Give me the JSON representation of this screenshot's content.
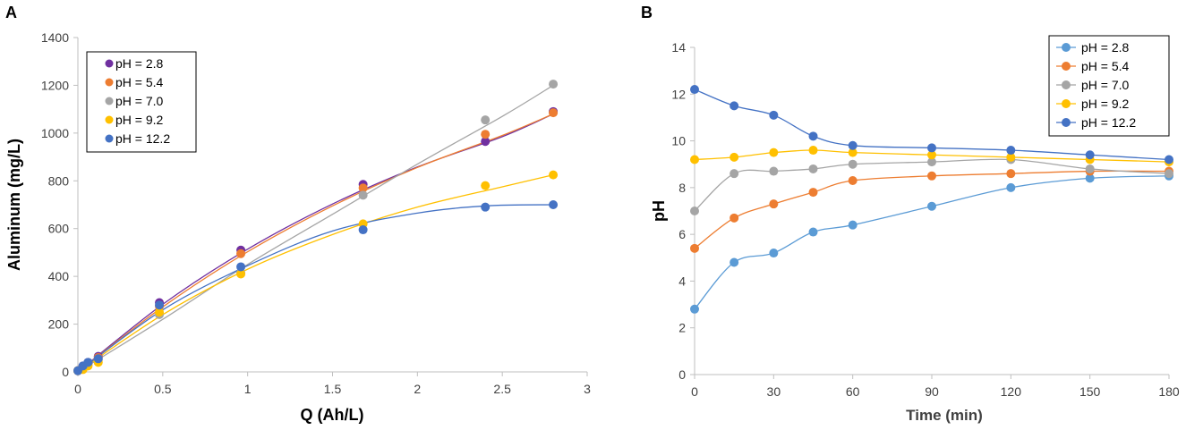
{
  "chart_data": [
    {
      "panel": "A",
      "type": "scatter",
      "xlabel": "Q (Ah/L)",
      "ylabel": "Aluminum (mg/L)",
      "xlim": [
        0,
        3
      ],
      "ylim": [
        0,
        1400
      ],
      "xticks": [
        0,
        0.5,
        1,
        1.5,
        2,
        2.5,
        3
      ],
      "yticks": [
        0,
        200,
        400,
        600,
        800,
        1000,
        1200,
        1400
      ],
      "xtick_labels": [
        "0",
        "0.5",
        "1",
        "1.5",
        "2",
        "2.5",
        "3"
      ],
      "ytick_labels": [
        "0",
        "200",
        "400",
        "600",
        "800",
        "1000",
        "1200",
        "1400"
      ],
      "legend": "top-left",
      "series": [
        {
          "name": "pH = 2.8",
          "color": "#7030a0",
          "x": [
            0,
            0.03,
            0.06,
            0.12,
            0.48,
            0.96,
            1.68,
            2.4,
            2.8
          ],
          "y": [
            5,
            25,
            40,
            65,
            290,
            510,
            785,
            965,
            1090
          ],
          "fit": [
            [
              0,
              0
            ],
            [
              0.5,
              283
            ],
            [
              1,
              514
            ],
            [
              1.5,
              703
            ],
            [
              2,
              858
            ],
            [
              2.5,
              985
            ],
            [
              2.8,
              1080
            ]
          ]
        },
        {
          "name": "pH = 5.4",
          "color": "#ed7d31",
          "x": [
            0,
            0.03,
            0.06,
            0.12,
            0.48,
            0.96,
            1.68,
            2.4,
            2.8
          ],
          "y": [
            5,
            20,
            35,
            60,
            275,
            495,
            770,
            995,
            1085
          ],
          "fit": [
            [
              0,
              0
            ],
            [
              0.5,
              272
            ],
            [
              1,
              503
            ],
            [
              1.5,
              695
            ],
            [
              2,
              856
            ],
            [
              2.5,
              990
            ],
            [
              2.8,
              1080
            ]
          ]
        },
        {
          "name": "pH = 7.0",
          "color": "#a5a5a5",
          "x": [
            0,
            0.03,
            0.06,
            0.12,
            0.48,
            0.96,
            1.68,
            2.4,
            2.8
          ],
          "y": [
            5,
            15,
            30,
            50,
            240,
            415,
            740,
            1055,
            1205
          ],
          "fit": [
            [
              0,
              0
            ],
            [
              0.5,
              220
            ],
            [
              1,
              450
            ],
            [
              1.5,
              660
            ],
            [
              2,
              870
            ],
            [
              2.5,
              1070
            ],
            [
              2.8,
              1200
            ]
          ]
        },
        {
          "name": "pH = 9.2",
          "color": "#ffc000",
          "x": [
            0,
            0.03,
            0.06,
            0.12,
            0.48,
            0.96,
            1.68,
            2.4,
            2.8
          ],
          "y": [
            5,
            10,
            25,
            40,
            250,
            410,
            620,
            780,
            825
          ],
          "fit": [
            [
              0,
              0
            ],
            [
              0.5,
              240
            ],
            [
              1,
              430
            ],
            [
              1.5,
              575
            ],
            [
              2,
              690
            ],
            [
              2.5,
              775
            ],
            [
              2.8,
              825
            ]
          ]
        },
        {
          "name": "pH = 12.2",
          "color": "#4472c4",
          "x": [
            0,
            0.03,
            0.06,
            0.12,
            0.48,
            0.96,
            1.68,
            2.4,
            2.8
          ],
          "y": [
            5,
            25,
            40,
            55,
            280,
            440,
            595,
            690,
            700
          ],
          "fit": [
            [
              0,
              0
            ],
            [
              0.5,
              260
            ],
            [
              1,
              445
            ],
            [
              1.5,
              590
            ],
            [
              2,
              665
            ],
            [
              2.4,
              695
            ],
            [
              2.8,
              700
            ]
          ]
        }
      ]
    },
    {
      "panel": "B",
      "type": "line",
      "xlabel": "Time (min)",
      "ylabel": "pH",
      "xlim": [
        0,
        180
      ],
      "ylim": [
        0,
        14
      ],
      "xticks": [
        0,
        30,
        60,
        90,
        120,
        150,
        180
      ],
      "yticks": [
        0,
        2,
        4,
        6,
        8,
        10,
        12,
        14
      ],
      "xtick_labels": [
        "0",
        "30",
        "60",
        "90",
        "120",
        "150",
        "180"
      ],
      "ytick_labels": [
        "0",
        "2",
        "4",
        "6",
        "8",
        "10",
        "12",
        "14"
      ],
      "legend": "top-right",
      "series": [
        {
          "name": "pH = 2.8",
          "color": "#5b9bd5",
          "x": [
            0,
            15,
            30,
            45,
            60,
            90,
            120,
            150,
            180
          ],
          "y": [
            2.8,
            4.8,
            5.2,
            6.1,
            6.4,
            7.2,
            8.0,
            8.4,
            8.5
          ]
        },
        {
          "name": "pH = 5.4",
          "color": "#ed7d31",
          "x": [
            0,
            15,
            30,
            45,
            60,
            90,
            120,
            150,
            180
          ],
          "y": [
            5.4,
            6.7,
            7.3,
            7.8,
            8.3,
            8.5,
            8.6,
            8.7,
            8.7
          ]
        },
        {
          "name": "pH = 7.0",
          "color": "#a5a5a5",
          "x": [
            0,
            15,
            30,
            45,
            60,
            90,
            120,
            150,
            180
          ],
          "y": [
            7.0,
            8.6,
            8.7,
            8.8,
            9.0,
            9.1,
            9.2,
            8.8,
            8.6
          ]
        },
        {
          "name": "pH = 9.2",
          "color": "#ffc000",
          "x": [
            0,
            15,
            30,
            45,
            60,
            90,
            120,
            150,
            180
          ],
          "y": [
            9.2,
            9.3,
            9.5,
            9.6,
            9.5,
            9.4,
            9.3,
            9.2,
            9.1
          ]
        },
        {
          "name": "pH = 12.2",
          "color": "#4472c4",
          "x": [
            0,
            15,
            30,
            45,
            60,
            90,
            120,
            150,
            180
          ],
          "y": [
            12.2,
            11.5,
            11.1,
            10.2,
            9.8,
            9.7,
            9.6,
            9.4,
            9.2
          ]
        }
      ]
    }
  ]
}
